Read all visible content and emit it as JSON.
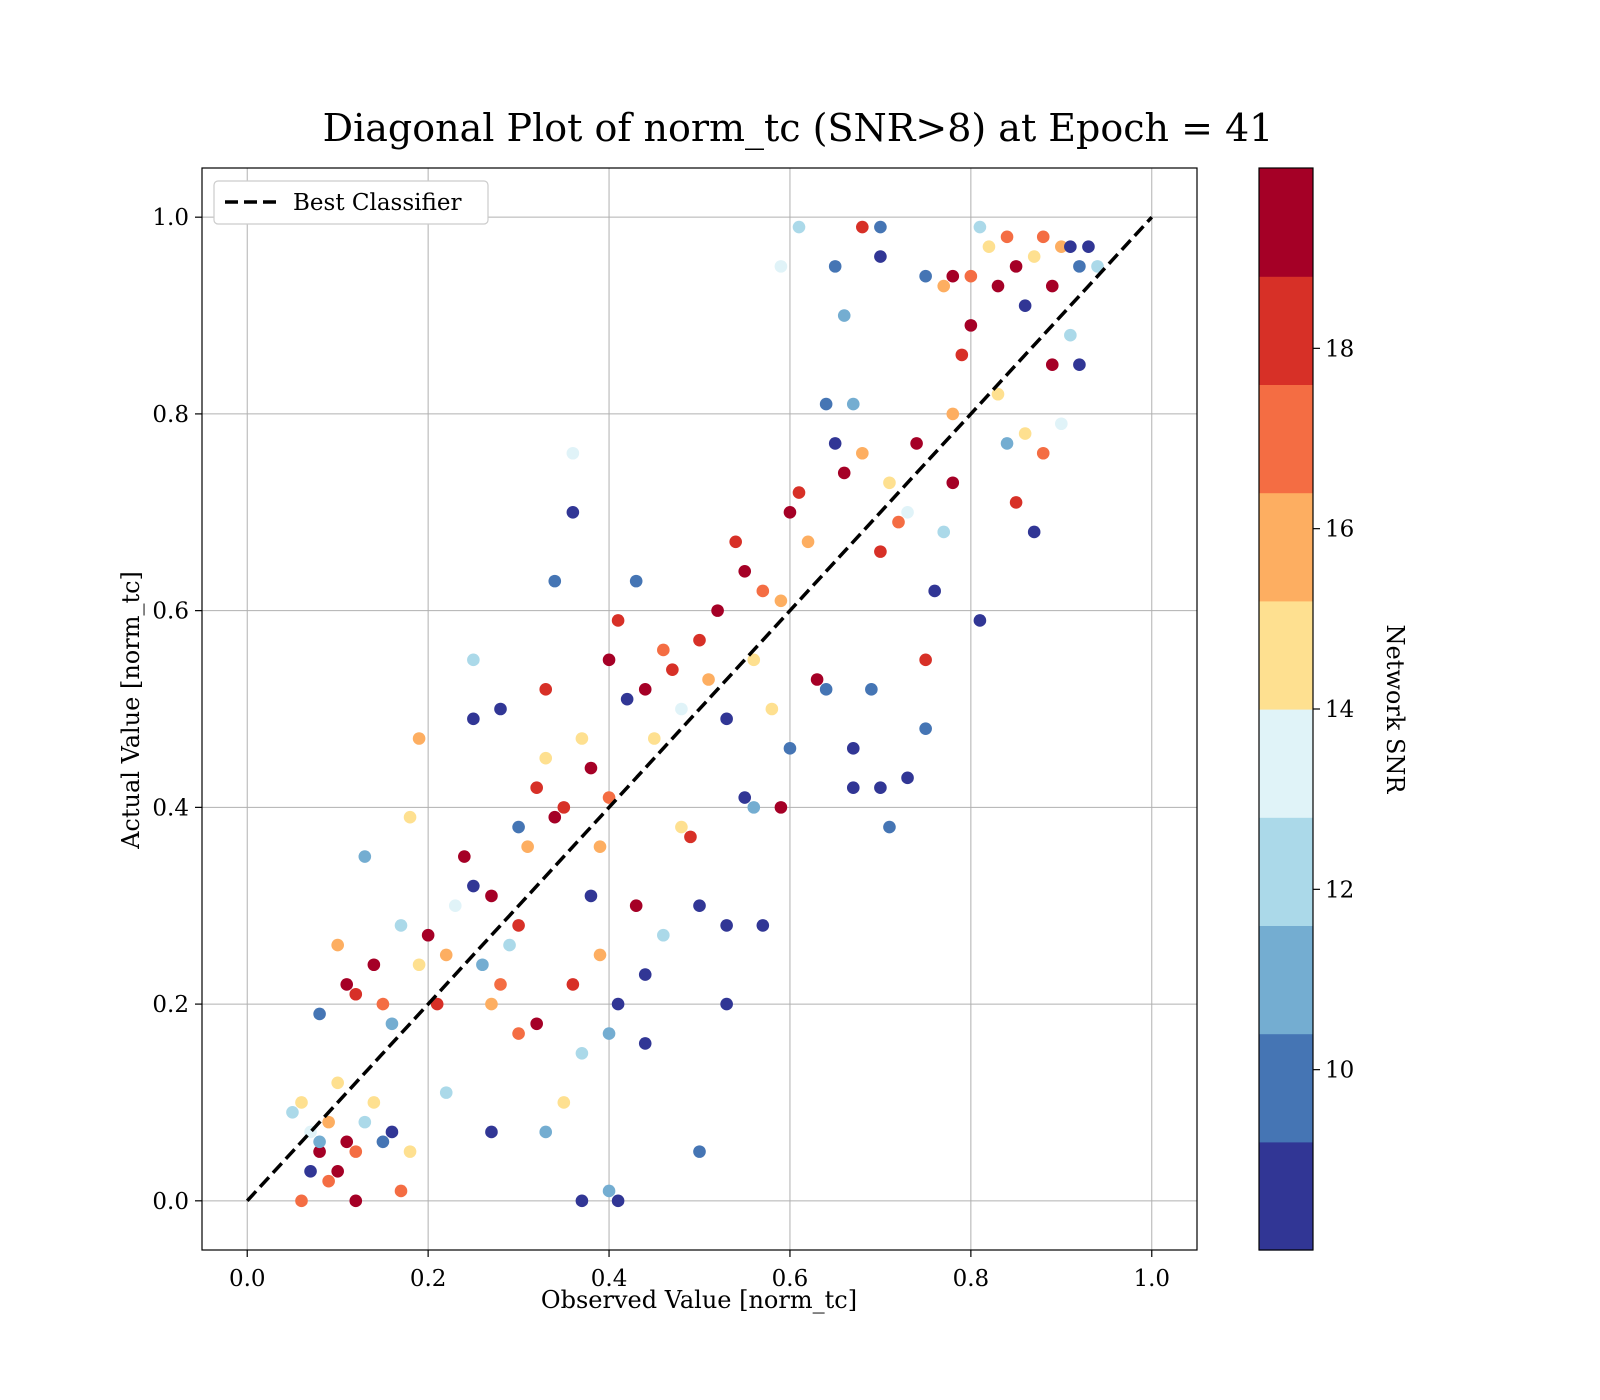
{
  "chart_data": {
    "type": "scatter",
    "title": "Diagonal Plot of norm_tc (SNR>8) at Epoch = 41",
    "xlabel": "Observed Value [norm_tc]",
    "ylabel": "Actual Value [norm_tc]",
    "xlim": [
      -0.05,
      1.05
    ],
    "ylim": [
      -0.05,
      1.05
    ],
    "xticks": [
      "0.0",
      "0.2",
      "0.4",
      "0.6",
      "0.8",
      "1.0"
    ],
    "yticks": [
      "0.0",
      "0.2",
      "0.4",
      "0.6",
      "0.8",
      "1.0"
    ],
    "grid": true,
    "legend": {
      "position": "upper-left",
      "entries": [
        "Best Classifier"
      ]
    },
    "reference_line": {
      "name": "Best Classifier",
      "style": "dashed",
      "color": "#000000",
      "from": [
        0,
        0
      ],
      "to": [
        1,
        1
      ]
    },
    "colorbar": {
      "label": "Network SNR",
      "range": [
        8,
        20
      ],
      "ticks": [
        "10",
        "12",
        "14",
        "16",
        "18"
      ],
      "tick_values": [
        10,
        12,
        14,
        16,
        18
      ],
      "colors": [
        "#313695",
        "#4575b4",
        "#74add1",
        "#abd9e9",
        "#e0f3f8",
        "#fee090",
        "#fdae61",
        "#f46d43",
        "#d73027",
        "#a50026"
      ]
    },
    "series": [
      {
        "marker": "circle",
        "points": [
          [
            0.06,
            0.0,
            17
          ],
          [
            0.07,
            0.03,
            9
          ],
          [
            0.08,
            0.05,
            19
          ],
          [
            0.09,
            0.02,
            17
          ],
          [
            0.1,
            0.03,
            19
          ],
          [
            0.05,
            0.09,
            12
          ],
          [
            0.06,
            0.1,
            14
          ],
          [
            0.07,
            0.07,
            13
          ],
          [
            0.08,
            0.06,
            11
          ],
          [
            0.09,
            0.08,
            16
          ],
          [
            0.1,
            0.12,
            15
          ],
          [
            0.11,
            0.06,
            19
          ],
          [
            0.12,
            0.05,
            17
          ],
          [
            0.13,
            0.08,
            12
          ],
          [
            0.12,
            0.0,
            19
          ],
          [
            0.14,
            0.1,
            14
          ],
          [
            0.15,
            0.06,
            10
          ],
          [
            0.16,
            0.07,
            9
          ],
          [
            0.17,
            0.01,
            17
          ],
          [
            0.18,
            0.05,
            15
          ],
          [
            0.11,
            0.22,
            19
          ],
          [
            0.12,
            0.21,
            18
          ],
          [
            0.14,
            0.24,
            19
          ],
          [
            0.15,
            0.2,
            17
          ],
          [
            0.1,
            0.26,
            16
          ],
          [
            0.13,
            0.35,
            11
          ],
          [
            0.08,
            0.19,
            10
          ],
          [
            0.16,
            0.18,
            11
          ],
          [
            0.17,
            0.28,
            12
          ],
          [
            0.19,
            0.24,
            14
          ],
          [
            0.2,
            0.27,
            19
          ],
          [
            0.21,
            0.2,
            18
          ],
          [
            0.22,
            0.25,
            16
          ],
          [
            0.18,
            0.39,
            15
          ],
          [
            0.19,
            0.47,
            16
          ],
          [
            0.23,
            0.3,
            13
          ],
          [
            0.24,
            0.35,
            19
          ],
          [
            0.25,
            0.32,
            9
          ],
          [
            0.26,
            0.24,
            11
          ],
          [
            0.27,
            0.31,
            19
          ],
          [
            0.28,
            0.22,
            17
          ],
          [
            0.29,
            0.26,
            12
          ],
          [
            0.3,
            0.28,
            18
          ],
          [
            0.31,
            0.36,
            16
          ],
          [
            0.25,
            0.55,
            12
          ],
          [
            0.25,
            0.49,
            9
          ],
          [
            0.28,
            0.5,
            9
          ],
          [
            0.3,
            0.38,
            10
          ],
          [
            0.32,
            0.42,
            18
          ],
          [
            0.33,
            0.45,
            15
          ],
          [
            0.34,
            0.39,
            19
          ],
          [
            0.35,
            0.4,
            18
          ],
          [
            0.34,
            0.63,
            10
          ],
          [
            0.36,
            0.7,
            9
          ],
          [
            0.36,
            0.76,
            13
          ],
          [
            0.33,
            0.52,
            18
          ],
          [
            0.37,
            0.47,
            15
          ],
          [
            0.38,
            0.44,
            19
          ],
          [
            0.38,
            0.31,
            9
          ],
          [
            0.39,
            0.36,
            16
          ],
          [
            0.4,
            0.41,
            17
          ],
          [
            0.4,
            0.55,
            19
          ],
          [
            0.41,
            0.59,
            18
          ],
          [
            0.42,
            0.51,
            9
          ],
          [
            0.43,
            0.63,
            10
          ],
          [
            0.44,
            0.52,
            19
          ],
          [
            0.45,
            0.47,
            15
          ],
          [
            0.46,
            0.56,
            17
          ],
          [
            0.47,
            0.54,
            18
          ],
          [
            0.48,
            0.5,
            13
          ],
          [
            0.37,
            0.0,
            9
          ],
          [
            0.4,
            0.01,
            11
          ],
          [
            0.41,
            0.0,
            9
          ],
          [
            0.33,
            0.07,
            11
          ],
          [
            0.27,
            0.07,
            9
          ],
          [
            0.41,
            0.2,
            9
          ],
          [
            0.43,
            0.3,
            19
          ],
          [
            0.44,
            0.23,
            9
          ],
          [
            0.44,
            0.16,
            9
          ],
          [
            0.5,
            0.05,
            10
          ],
          [
            0.5,
            0.3,
            9
          ],
          [
            0.53,
            0.28,
            9
          ],
          [
            0.53,
            0.2,
            9
          ],
          [
            0.57,
            0.28,
            9
          ],
          [
            0.6,
            0.46,
            10
          ],
          [
            0.5,
            0.57,
            18
          ],
          [
            0.51,
            0.53,
            16
          ],
          [
            0.52,
            0.6,
            19
          ],
          [
            0.53,
            0.49,
            9
          ],
          [
            0.54,
            0.67,
            18
          ],
          [
            0.55,
            0.64,
            19
          ],
          [
            0.56,
            0.55,
            15
          ],
          [
            0.57,
            0.62,
            17
          ],
          [
            0.58,
            0.5,
            14
          ],
          [
            0.59,
            0.61,
            16
          ],
          [
            0.6,
            0.7,
            19
          ],
          [
            0.61,
            0.72,
            18
          ],
          [
            0.62,
            0.67,
            16
          ],
          [
            0.63,
            0.53,
            19
          ],
          [
            0.64,
            0.52,
            10
          ],
          [
            0.64,
            0.81,
            10
          ],
          [
            0.65,
            0.77,
            9
          ],
          [
            0.66,
            0.74,
            19
          ],
          [
            0.67,
            0.81,
            11
          ],
          [
            0.68,
            0.76,
            16
          ],
          [
            0.67,
            0.42,
            9
          ],
          [
            0.67,
            0.46,
            9
          ],
          [
            0.7,
            0.42,
            9
          ],
          [
            0.71,
            0.38,
            10
          ],
          [
            0.73,
            0.43,
            9
          ],
          [
            0.69,
            0.52,
            10
          ],
          [
            0.7,
            0.66,
            18
          ],
          [
            0.71,
            0.73,
            15
          ],
          [
            0.72,
            0.69,
            17
          ],
          [
            0.73,
            0.7,
            13
          ],
          [
            0.74,
            0.77,
            19
          ],
          [
            0.75,
            0.55,
            18
          ],
          [
            0.75,
            0.48,
            10
          ],
          [
            0.76,
            0.62,
            9
          ],
          [
            0.77,
            0.68,
            12
          ],
          [
            0.78,
            0.73,
            19
          ],
          [
            0.78,
            0.8,
            16
          ],
          [
            0.79,
            0.86,
            18
          ],
          [
            0.8,
            0.89,
            19
          ],
          [
            0.81,
            0.59,
            9
          ],
          [
            0.8,
            0.94,
            17
          ],
          [
            0.81,
            0.99,
            12
          ],
          [
            0.82,
            0.97,
            15
          ],
          [
            0.83,
            0.93,
            19
          ],
          [
            0.84,
            0.98,
            17
          ],
          [
            0.85,
            0.95,
            19
          ],
          [
            0.86,
            0.91,
            9
          ],
          [
            0.87,
            0.96,
            14
          ],
          [
            0.88,
            0.98,
            17
          ],
          [
            0.89,
            0.93,
            19
          ],
          [
            0.9,
            0.97,
            16
          ],
          [
            0.91,
            0.97,
            9
          ],
          [
            0.92,
            0.95,
            10
          ],
          [
            0.93,
            0.97,
            9
          ],
          [
            0.94,
            0.95,
            12
          ],
          [
            0.83,
            0.82,
            14
          ],
          [
            0.84,
            0.77,
            11
          ],
          [
            0.85,
            0.71,
            18
          ],
          [
            0.86,
            0.78,
            15
          ],
          [
            0.87,
            0.68,
            9
          ],
          [
            0.88,
            0.76,
            17
          ],
          [
            0.89,
            0.85,
            19
          ],
          [
            0.9,
            0.79,
            13
          ],
          [
            0.91,
            0.88,
            12
          ],
          [
            0.92,
            0.85,
            9
          ],
          [
            0.61,
            0.99,
            12
          ],
          [
            0.65,
            0.95,
            10
          ],
          [
            0.68,
            0.99,
            18
          ],
          [
            0.7,
            0.99,
            10
          ],
          [
            0.7,
            0.96,
            9
          ],
          [
            0.75,
            0.94,
            10
          ],
          [
            0.77,
            0.93,
            16
          ],
          [
            0.78,
            0.94,
            19
          ],
          [
            0.59,
            0.95,
            13
          ],
          [
            0.66,
            0.9,
            11
          ],
          [
            0.55,
            0.41,
            9
          ],
          [
            0.56,
            0.4,
            11
          ],
          [
            0.59,
            0.4,
            19
          ],
          [
            0.48,
            0.38,
            15
          ],
          [
            0.49,
            0.37,
            18
          ],
          [
            0.46,
            0.27,
            12
          ],
          [
            0.39,
            0.25,
            16
          ],
          [
            0.36,
            0.22,
            18
          ],
          [
            0.4,
            0.17,
            11
          ],
          [
            0.37,
            0.15,
            12
          ],
          [
            0.35,
            0.1,
            14
          ],
          [
            0.3,
            0.17,
            17
          ],
          [
            0.32,
            0.18,
            19
          ],
          [
            0.27,
            0.2,
            16
          ],
          [
            0.22,
            0.11,
            12
          ]
        ]
      }
    ]
  }
}
